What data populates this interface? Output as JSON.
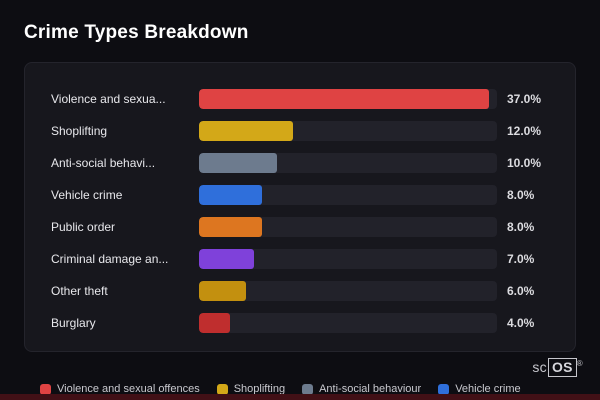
{
  "page": {
    "title": "Crime Types Breakdown"
  },
  "chart_data": {
    "type": "bar",
    "orientation": "horizontal",
    "title": "Crime Types Breakdown",
    "categories": [
      "Violence and sexua...",
      "Shoplifting",
      "Anti-social behavi...",
      "Vehicle crime",
      "Public order",
      "Criminal damage an...",
      "Other theft",
      "Burglary"
    ],
    "values": [
      37.0,
      12.0,
      10.0,
      8.0,
      8.0,
      7.0,
      6.0,
      4.0
    ],
    "value_labels": [
      "37.0%",
      "12.0%",
      "10.0%",
      "8.0%",
      "8.0%",
      "7.0%",
      "6.0%",
      "4.0%"
    ],
    "colors": [
      "#df4343",
      "#d3a818",
      "#6d7b8e",
      "#2f6fdb",
      "#dd7620",
      "#7f41da",
      "#c3900f",
      "#bf2e2e"
    ],
    "xmax": 38,
    "grid": false,
    "track_color": "#22222a",
    "legend_position": "bottom"
  },
  "legend": {
    "items": [
      {
        "label": "Violence and sexual offences",
        "color": "#df4343"
      },
      {
        "label": "Shoplifting",
        "color": "#d3a818"
      },
      {
        "label": "Anti-social behaviour",
        "color": "#6d7b8e"
      },
      {
        "label": "Vehicle crime",
        "color": "#2f6fdb"
      }
    ]
  },
  "branding": {
    "prefix": "sc",
    "box": "OS",
    "reg": "®"
  }
}
